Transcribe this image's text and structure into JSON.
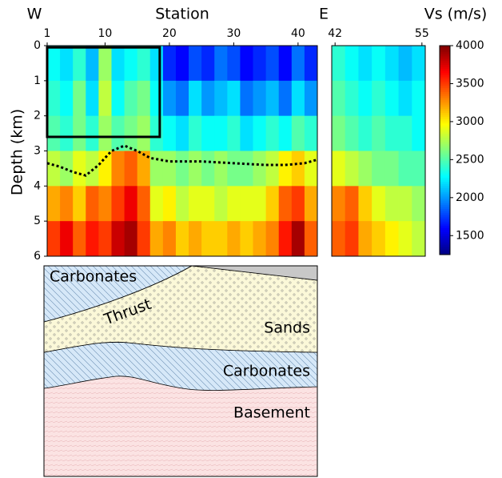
{
  "chart_data": [
    {
      "type": "heatmap",
      "title": "Station",
      "corner_labels": [
        "W",
        "E"
      ],
      "ylabel": "Depth (km)",
      "xlim": [
        1,
        43
      ],
      "xticks": [
        1,
        10,
        20,
        30,
        40
      ],
      "ylim": [
        6,
        0
      ],
      "yticks": [
        0,
        1,
        2,
        3,
        4,
        5,
        6
      ],
      "xbins": [
        1,
        3,
        5,
        7,
        9,
        11,
        13,
        15,
        17,
        19,
        21,
        23,
        25,
        27,
        29,
        31,
        33,
        35,
        37,
        39,
        41,
        43
      ],
      "ybins": [
        0,
        1,
        2,
        3,
        4,
        5,
        6
      ],
      "values": [
        [
          2300,
          2200,
          2400,
          2100,
          2700,
          2200,
          2300,
          2400,
          2200,
          1700,
          1600,
          1800,
          1700,
          1900,
          1800,
          1600,
          1700,
          1800,
          1600,
          1900,
          1700
        ],
        [
          2400,
          2300,
          2600,
          2200,
          2800,
          2300,
          2500,
          2600,
          2300,
          2000,
          1900,
          2200,
          2000,
          2100,
          2200,
          1900,
          2000,
          2100,
          1900,
          2200,
          2000
        ],
        [
          2500,
          2400,
          2600,
          2400,
          2700,
          2500,
          2600,
          2700,
          2400,
          2300,
          2200,
          2400,
          2300,
          2300,
          2400,
          2200,
          2300,
          2400,
          2300,
          2500,
          2400
        ],
        [
          2800,
          2700,
          2900,
          2800,
          3000,
          3300,
          3400,
          3200,
          2700,
          2700,
          2600,
          2700,
          2600,
          2700,
          2600,
          2600,
          2700,
          2800,
          3000,
          3100,
          2900
        ],
        [
          3200,
          3300,
          3100,
          3400,
          3300,
          3500,
          3700,
          3400,
          2900,
          3000,
          2800,
          2900,
          2900,
          2800,
          2900,
          2900,
          2900,
          3100,
          3400,
          3500,
          3200
        ],
        [
          3500,
          3700,
          3400,
          3600,
          3500,
          3800,
          3900,
          3500,
          3200,
          3300,
          3100,
          3200,
          3100,
          3100,
          3200,
          3100,
          3200,
          3300,
          3600,
          3900,
          3400
        ]
      ],
      "boundary": {
        "x": [
          1,
          3,
          5,
          7,
          9,
          11,
          13,
          15,
          17,
          20,
          25,
          30,
          35,
          38,
          41,
          43
        ],
        "y": [
          3.35,
          3.45,
          3.6,
          3.7,
          3.4,
          3.0,
          2.85,
          3.0,
          3.2,
          3.3,
          3.3,
          3.35,
          3.4,
          3.4,
          3.35,
          3.25
        ]
      },
      "box": {
        "x": [
          1,
          18.5
        ],
        "y": [
          0.05,
          2.6
        ]
      }
    },
    {
      "type": "heatmap",
      "xlim": [
        41.5,
        55.5
      ],
      "xticks": [
        42,
        55
      ],
      "ylim": [
        6,
        0
      ],
      "xbins": [
        41.5,
        43.5,
        45.5,
        47.5,
        49.5,
        51.5,
        53.5,
        55.5
      ],
      "ybins": [
        0,
        1,
        2,
        3,
        4,
        5,
        6
      ],
      "values": [
        [
          2400,
          2300,
          2200,
          2300,
          2200,
          2100,
          2200
        ],
        [
          2500,
          2400,
          2300,
          2400,
          2300,
          2200,
          2300
        ],
        [
          2600,
          2500,
          2400,
          2500,
          2400,
          2400,
          2300
        ],
        [
          2900,
          2800,
          2700,
          2600,
          2600,
          2500,
          2500
        ],
        [
          3300,
          3400,
          3100,
          2900,
          2800,
          2800,
          2700
        ],
        [
          3400,
          3500,
          3200,
          3100,
          3000,
          2900,
          2800
        ]
      ]
    },
    {
      "type": "colorbar",
      "title": "Vs (m/s)",
      "colormap": "jet",
      "clim": [
        1250,
        4000
      ],
      "ticks": [
        1500,
        2000,
        2500,
        3000,
        3500,
        4000
      ]
    }
  ],
  "diagram": {
    "labels": [
      "Carbonates",
      "Thrust",
      "Sands",
      "Carbonates",
      "Basement"
    ]
  }
}
